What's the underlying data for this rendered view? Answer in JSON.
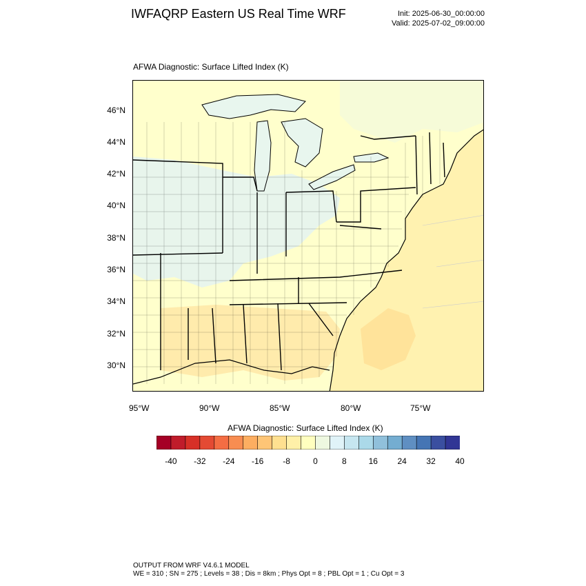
{
  "header": {
    "title": "IWFAQRP Eastern US Real Time WRF",
    "init": "Init: 2025-06-30_00:00:00",
    "valid": "Valid: 2025-07-02_09:00:00"
  },
  "plot": {
    "title": "AFWA Diagnostic: Surface Lifted Index   (K)"
  },
  "axes": {
    "lat_labels": [
      "46°N",
      "44°N",
      "42°N",
      "40°N",
      "38°N",
      "36°N",
      "34°N",
      "32°N",
      "30°N"
    ],
    "lon_labels": [
      "95°W",
      "90°W",
      "85°W",
      "80°W",
      "75°W"
    ]
  },
  "colorbar": {
    "title": "AFWA Diagnostic: Surface Lifted Index  (K)",
    "ticks": [
      "-40",
      "-32",
      "-24",
      "-16",
      "-8",
      "0",
      "8",
      "16",
      "24",
      "32",
      "40"
    ],
    "colors": [
      "#a50026",
      "#c01c2b",
      "#d73027",
      "#e44a33",
      "#f46d43",
      "#f88d51",
      "#fdae61",
      "#fec576",
      "#fee090",
      "#fff0a8",
      "#ffffbf",
      "#eef8e0",
      "#e0f3f8",
      "#c6e6f0",
      "#abd9e9",
      "#90c0db",
      "#74add1",
      "#5f8fc2",
      "#4575b4",
      "#3a4fa0",
      "#313695"
    ]
  },
  "map_fills": {
    "ocean": "#fff2b0",
    "land_base": "#ffffcc",
    "land_warm": "#ffe9a8",
    "land_cool": "#e6f4f0",
    "lakes": "#e8f6ee",
    "gulf_stream": "#ffe39a"
  },
  "footer": {
    "line1": "OUTPUT FROM WRF V4.6.1 MODEL",
    "line2": "WE = 310 ; SN = 275 ; Levels = 38 ; Dis = 8km ; Phys Opt = 8 ; PBL Opt = 1 ; Cu Opt = 3"
  }
}
